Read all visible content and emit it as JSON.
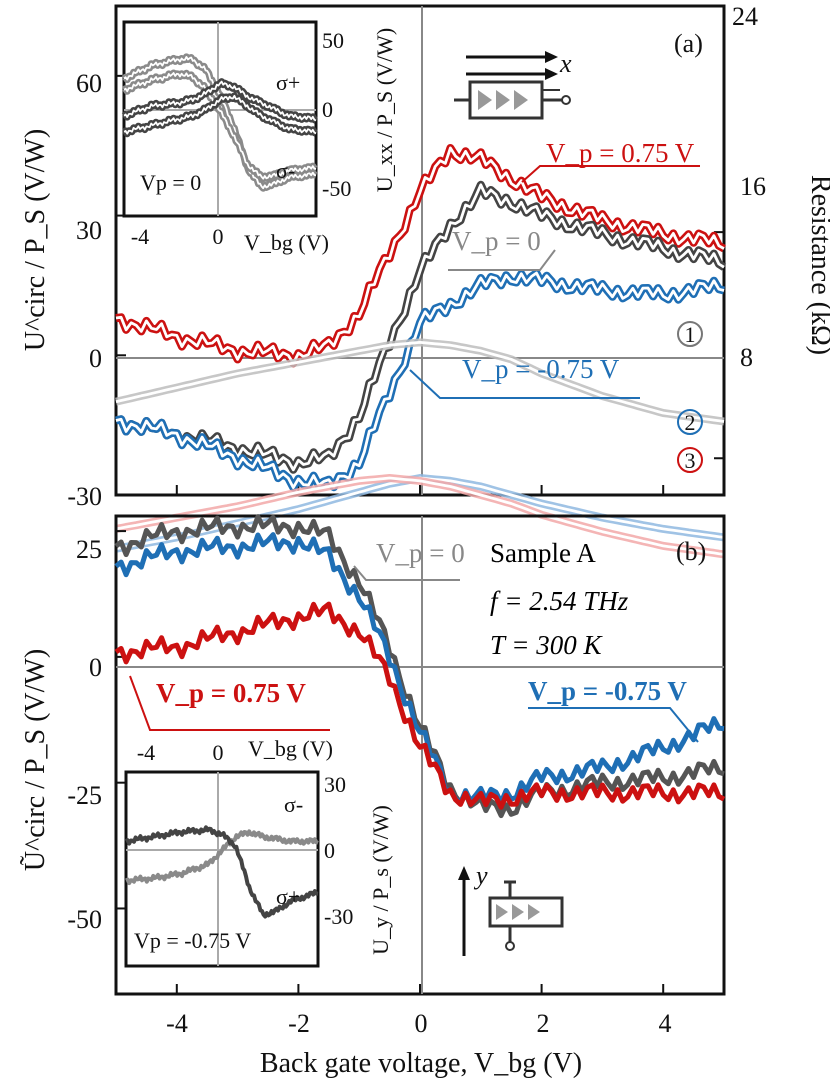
{
  "figure": {
    "xlabel": "Back gate voltage, V_bg (V)",
    "x_ticks": [
      "-4",
      "-2",
      "0",
      "2",
      "4"
    ]
  },
  "chart_data": [
    {
      "type": "line",
      "panel": "(a)",
      "title": "",
      "ylabel": "U^circ / P_S (V/W)",
      "y2label": "Resistance (kΩ)",
      "xlim": [
        -5,
        5
      ],
      "ylim": [
        -30,
        75
      ],
      "y2lim": [
        6.7,
        24
      ],
      "y_ticks": [
        "60",
        "30",
        "0",
        "-30"
      ],
      "y2_ticks": [
        "24",
        "16",
        "8"
      ],
      "sample_x": [
        -5,
        -4,
        -3,
        -2,
        -1.5,
        -1,
        -0.5,
        0,
        0.5,
        1,
        1.5,
        2,
        3,
        4,
        5
      ],
      "series": [
        {
          "name": "V_p = 0.75 V",
          "label": "Vp = 0.75 V",
          "color": "#cc1111",
          "values": [
            8,
            4,
            1,
            0,
            2,
            9,
            22,
            35,
            44,
            42,
            38,
            34,
            29,
            26,
            24
          ]
        },
        {
          "name": "V_p = 0",
          "label": "Vp = 0",
          "color": "#444444",
          "values": [
            -14,
            -17,
            -20,
            -23,
            -22,
            -13,
            3,
            18,
            28,
            35,
            33,
            30,
            26,
            23,
            20
          ]
        },
        {
          "name": "V_p = -0.75 V",
          "label": "Vp = -0.75 V",
          "color": "#1f6fb5",
          "values": [
            -14,
            -17,
            -22,
            -27,
            -28,
            -23,
            -8,
            7,
            11,
            15,
            17,
            16,
            14,
            13,
            15
          ]
        },
        {
          "name": "Resistance 1",
          "label": "1",
          "axis": "right",
          "color": "#bdbdbd",
          "values": [
            10.0,
            10.5,
            11.0,
            11.4,
            11.6,
            11.8,
            12.0,
            12.1,
            12.0,
            11.8,
            11.5,
            11.0,
            10.2,
            9.6,
            9.3
          ]
        },
        {
          "name": "Resistance 2",
          "label": "2",
          "axis": "right",
          "color": "#8fb8e0",
          "values": [
            4.8,
            5.2,
            5.7,
            6.2,
            6.5,
            6.8,
            7.1,
            7.3,
            7.2,
            7.0,
            6.7,
            6.4,
            5.9,
            5.5,
            5.2
          ]
        },
        {
          "name": "Resistance 3",
          "label": "3",
          "axis": "right",
          "color": "#f2a8a8",
          "values": [
            5.5,
            5.9,
            6.3,
            6.8,
            7.0,
            7.2,
            7.3,
            7.2,
            7.0,
            6.7,
            6.4,
            6.0,
            5.4,
            4.9,
            4.6
          ]
        }
      ],
      "inset": {
        "ylabel": "U_xx / P_S (V/W)",
        "xlabel": "V_bg (V)",
        "xlim": [
          -5,
          2
        ],
        "ylim": [
          -60,
          60
        ],
        "x_ticks": [
          "-4",
          "0"
        ],
        "y_ticks": [
          "50",
          "0",
          "-50"
        ],
        "note": "Vp = 0",
        "sigma_plus": "σ+",
        "sigma_minus": "σ-",
        "sample_x": [
          -5,
          -4,
          -3,
          -2.5,
          -2,
          -1.5,
          -1,
          -0.5,
          0,
          0.5,
          1,
          2
        ],
        "series": [
          {
            "name": "sigma+ (upper)",
            "values": [
              25,
              33,
              37,
              37,
              30,
              15,
              -5,
              -30,
              -42,
              -40,
              -36,
              -34
            ]
          },
          {
            "name": "sigma+ (lower)",
            "values": [
              18,
              24,
              28,
              26,
              18,
              5,
              -10,
              -28,
              -36,
              -35,
              -32,
              -30
            ]
          },
          {
            "name": "sigma- (upper)",
            "values": [
              2,
              8,
              10,
              12,
              16,
              22,
              20,
              14,
              10,
              6,
              2,
              0
            ]
          },
          {
            "name": "sigma- (lower)",
            "values": [
              -8,
              -4,
              0,
              2,
              6,
              12,
              14,
              8,
              2,
              -2,
              -6,
              -8
            ]
          }
        ]
      },
      "annotations": {
        "panel_label": "(a)",
        "red_label": "V_p = 0.75 V",
        "gray_label": "V_p = 0",
        "blue_label": "V_p = -0.75 V",
        "axis_x": "x"
      }
    },
    {
      "type": "line",
      "panel": "(b)",
      "title": "",
      "ylabel": "Ũ^circ / P_S (V/W)",
      "xlim": [
        -5,
        5
      ],
      "ylim": [
        -67,
        28
      ],
      "y_ticks": [
        "25",
        "0",
        "-25",
        "-50"
      ],
      "sample_x": [
        -5,
        -4,
        -3,
        -2,
        -1.5,
        -1,
        -0.5,
        0,
        0.5,
        1,
        1.5,
        2,
        3,
        4,
        5
      ],
      "series": [
        {
          "name": "V_p = 0",
          "label": "Vp = 0",
          "color": "#555555",
          "values": [
            22,
            25,
            26,
            26,
            24,
            15,
            2,
            -14,
            -26,
            -30,
            -30,
            -27,
            -25,
            -24,
            -22
          ]
        },
        {
          "name": "V_p = -0.75 V",
          "label": "Vp = -0.75 V",
          "color": "#1f6fb5",
          "values": [
            18,
            21,
            22,
            23,
            20,
            12,
            0,
            -15,
            -27,
            -28,
            -27,
            -24,
            -22,
            -18,
            -13
          ]
        },
        {
          "name": "V_p = 0.75 V",
          "label": "Vp = 0.75 V",
          "color": "#cc1111",
          "values": [
            1,
            2,
            5,
            8,
            9,
            5,
            -4,
            -18,
            -27,
            -29,
            -28,
            -27,
            -27,
            -27,
            -27
          ]
        }
      ],
      "inset": {
        "ylabel": "U_y / P_s (V/W)",
        "xlabel": "V_bg (V)",
        "xlim": [
          -5,
          2
        ],
        "ylim": [
          -42,
          42
        ],
        "x_ticks": [
          "-4",
          "0"
        ],
        "y_ticks": [
          "30",
          "0",
          "-30"
        ],
        "note": "Vp = -0.75 V",
        "sigma_plus": "σ+",
        "sigma_minus": "σ-",
        "sample_x": [
          -5,
          -4,
          -3,
          -2,
          -1.5,
          -1,
          -0.5,
          0,
          0.5,
          1,
          2
        ],
        "series": [
          {
            "name": "sigma-",
            "values": [
              -5,
              -4,
              -2,
              2,
              8,
              14,
              16,
              14,
              13,
              12,
              12
            ]
          },
          {
            "name": "sigma+",
            "values": [
              12,
              14,
              16,
              17,
              15,
              10,
              -8,
              -20,
              -18,
              -14,
              -10
            ]
          }
        ]
      },
      "annotations": {
        "panel_label": "(b)",
        "sample": "Sample A",
        "frequency": "f = 2.54 THz",
        "temperature": "T = 300 K",
        "gray_label": "V_p = 0",
        "red_label": "V_p = 0.75 V",
        "blue_label": "V_p = -0.75 V",
        "axis_y": "y"
      }
    }
  ]
}
